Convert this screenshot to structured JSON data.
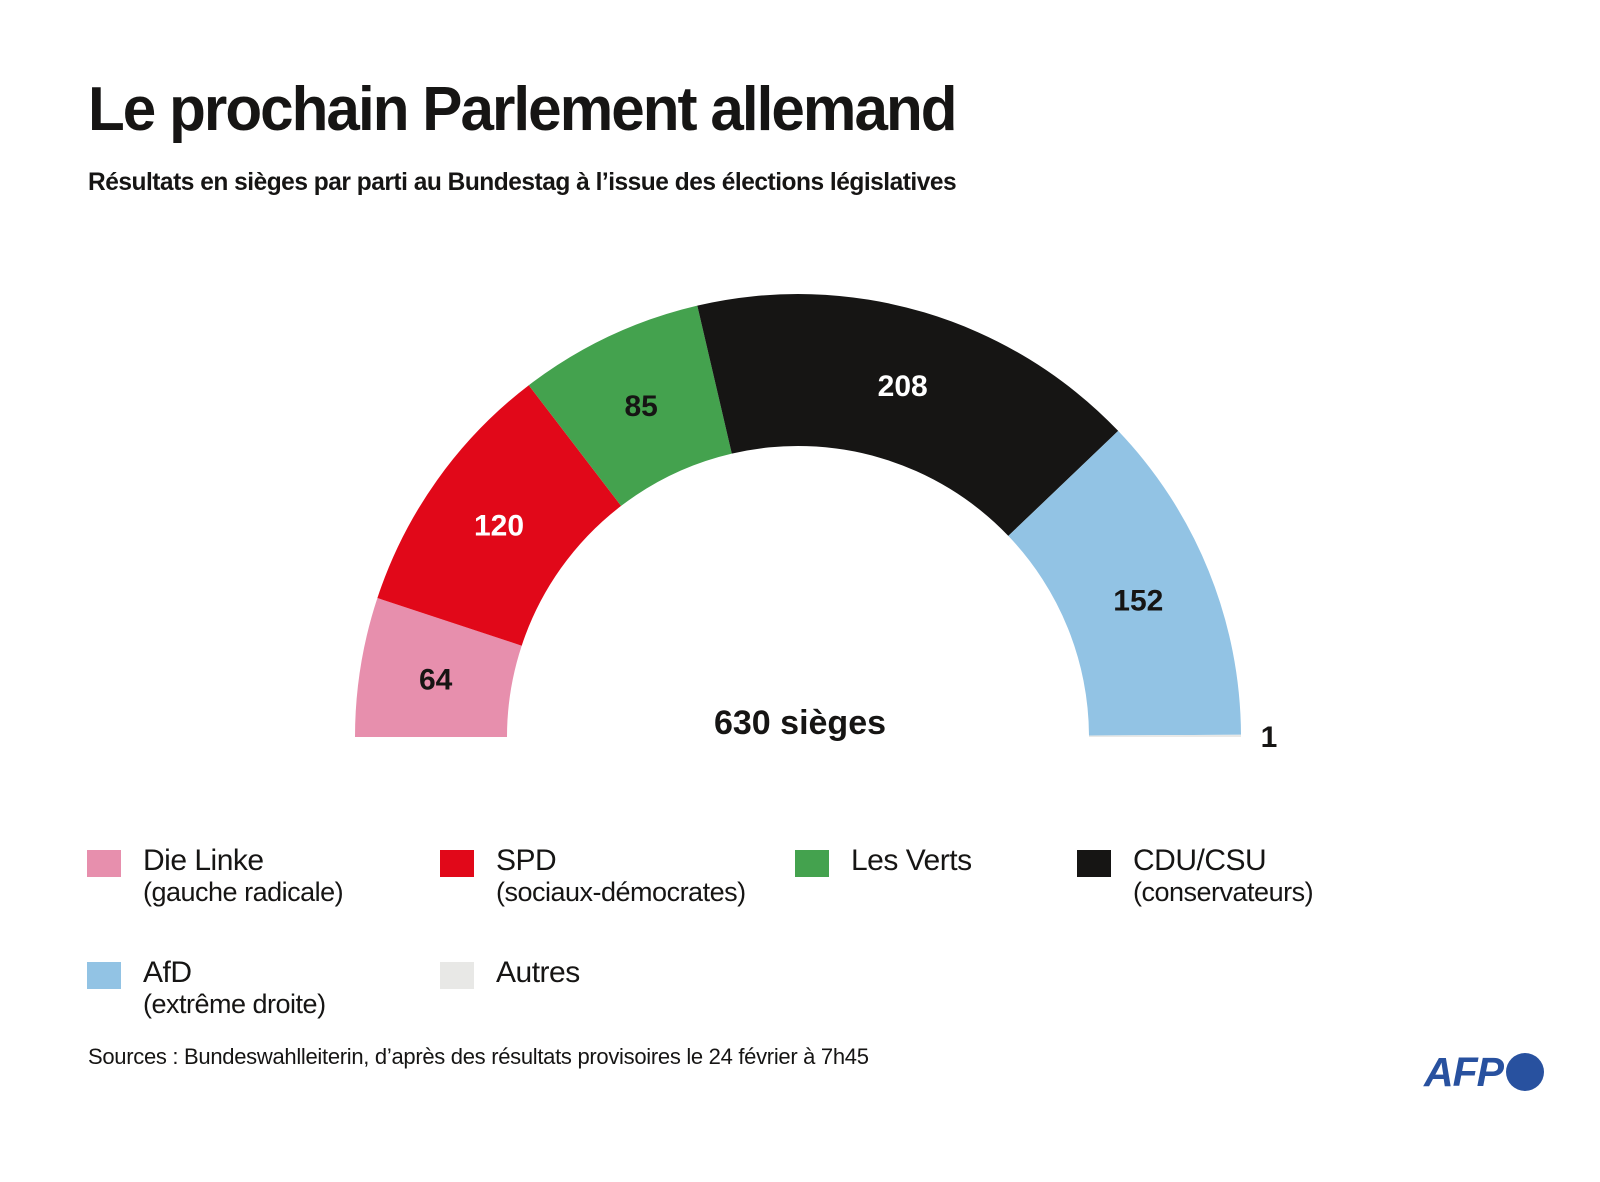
{
  "header": {
    "title": "Le prochain Parlement allemand",
    "subtitle": "Résultats en sièges par parti au Bundestag à l’issue des élections législatives"
  },
  "chart_data": {
    "type": "pie",
    "variant": "half-donut-parliament",
    "title": "Le prochain Parlement allemand",
    "total_seats": 630,
    "center_label": "630 sièges",
    "legend_position": "bottom",
    "series": [
      {
        "name": "Die Linke",
        "description": "(gauche radicale)",
        "value": 64,
        "color": "#e78fad",
        "label_color": "#161514"
      },
      {
        "name": "SPD",
        "description": "(sociaux-démocrates)",
        "value": 120,
        "color": "#e10819",
        "label_color": "#ffffff"
      },
      {
        "name": "Les Verts",
        "description": "",
        "value": 85,
        "color": "#44a24e",
        "label_color": "#161514"
      },
      {
        "name": "CDU/CSU",
        "description": "(conservateurs)",
        "value": 208,
        "color": "#161514",
        "label_color": "#ffffff"
      },
      {
        "name": "AfD",
        "description": "(extrême droite)",
        "value": 152,
        "color": "#92c3e4",
        "label_color": "#161514"
      },
      {
        "name": "Autres",
        "description": "",
        "value": 1,
        "color": "#e8e8e6",
        "label_color": "#161514",
        "label_outside": true
      }
    ]
  },
  "footer": {
    "source": "Sources : Bundeswahlleiterin, d’après des résultats provisoires le 24 février à 7h45",
    "logo_text": "AFP",
    "logo_color": "#28519f"
  }
}
